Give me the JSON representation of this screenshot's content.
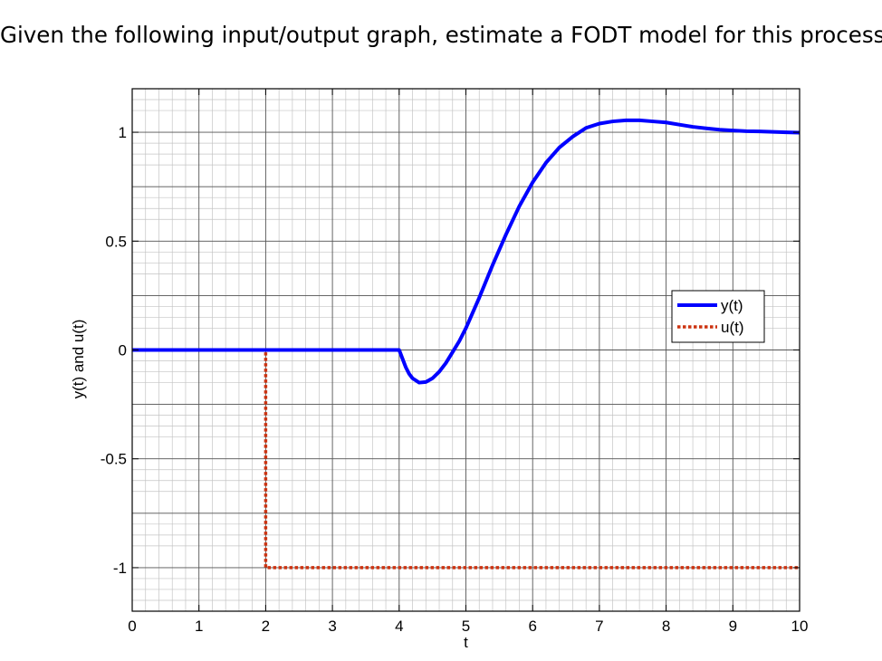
{
  "question": "Given the following input/output graph, estimate a FODT model for this process.",
  "chart_data": {
    "type": "line",
    "title": "",
    "xlabel": "t",
    "ylabel": "y(t) and u(t)",
    "xlim": [
      0,
      10
    ],
    "ylim": [
      -1.2,
      1.2
    ],
    "xticks": [
      "0",
      "1",
      "2",
      "3",
      "4",
      "5",
      "6",
      "7",
      "8",
      "9",
      "10"
    ],
    "yticks": [
      {
        "value": 1,
        "label": "1"
      },
      {
        "value": 0.5,
        "label": "0.5"
      },
      {
        "value": 0,
        "label": "0"
      },
      {
        "value": -0.5,
        "label": "-0.5"
      },
      {
        "value": -1,
        "label": "-1"
      }
    ],
    "grid": true,
    "minor_grid": true,
    "legend": "center-right",
    "series": [
      {
        "name": "y(t)",
        "color": "#0000ff",
        "style": "solid",
        "x": [
          0,
          4.0,
          4.05,
          4.1,
          4.15,
          4.2,
          4.3,
          4.4,
          4.5,
          4.6,
          4.7,
          4.8,
          4.9,
          5.0,
          5.2,
          5.4,
          5.6,
          5.8,
          6.0,
          6.2,
          6.4,
          6.6,
          6.8,
          7.0,
          7.2,
          7.4,
          7.6,
          7.8,
          8.0,
          8.2,
          8.4,
          8.6,
          8.8,
          9.0,
          9.2,
          9.4,
          9.6,
          9.8,
          10.0
        ],
        "y": [
          0,
          0,
          -0.04,
          -0.08,
          -0.11,
          -0.13,
          -0.15,
          -0.147,
          -0.13,
          -0.1,
          -0.06,
          -0.01,
          0.04,
          0.1,
          0.24,
          0.39,
          0.53,
          0.66,
          0.77,
          0.86,
          0.93,
          0.98,
          1.02,
          1.04,
          1.05,
          1.055,
          1.055,
          1.05,
          1.045,
          1.035,
          1.025,
          1.018,
          1.012,
          1.008,
          1.005,
          1.004,
          1.002,
          1.0,
          0.998
        ]
      },
      {
        "name": "u(t)",
        "color": "#cc3311",
        "style": "dotted",
        "x": [
          0,
          2.0,
          2.0,
          10.0
        ],
        "y": [
          0,
          0,
          -1,
          -1
        ]
      }
    ]
  }
}
